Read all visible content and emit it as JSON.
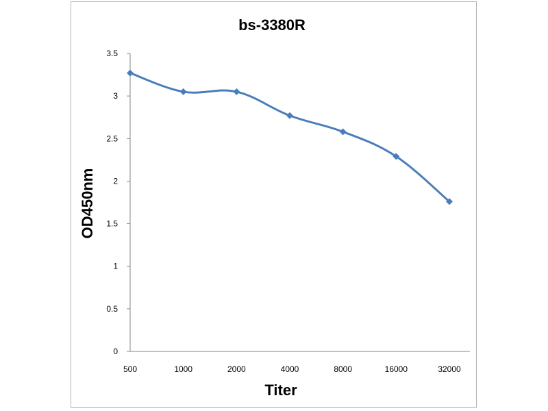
{
  "chart_data": {
    "type": "line",
    "title": "bs-3380R",
    "xlabel": "Titer",
    "ylabel": "OD450nm",
    "categories": [
      "500",
      "1000",
      "2000",
      "4000",
      "8000",
      "16000",
      "32000"
    ],
    "series": [
      {
        "values": [
          3.27,
          3.05,
          3.05,
          2.77,
          2.58,
          2.29,
          1.76
        ],
        "color": "#4a7ebb"
      }
    ],
    "ylim": [
      0,
      3.5
    ],
    "yticks": [
      "0",
      "0.5",
      "1",
      "1.5",
      "2",
      "2.5",
      "3",
      "3.5"
    ],
    "grid": false,
    "legend": "none",
    "marker": "diamond",
    "smooth": true
  }
}
